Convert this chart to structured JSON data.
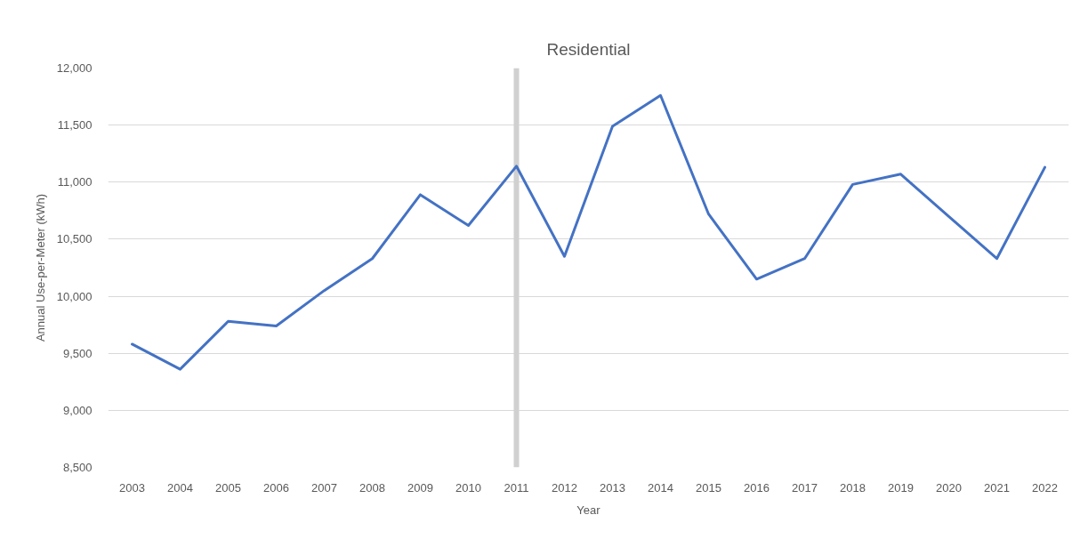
{
  "chart_data": {
    "type": "line",
    "title": "Residential",
    "xlabel": "Year",
    "ylabel": "Annual Use-per-Meter (kWh)",
    "categories": [
      "2003",
      "2004",
      "2005",
      "2006",
      "2007",
      "2008",
      "2009",
      "2010",
      "2011",
      "2012",
      "2013",
      "2014",
      "2015",
      "2016",
      "2017",
      "2018",
      "2019",
      "2020",
      "2021",
      "2022"
    ],
    "series": [
      {
        "color": "#4472c4",
        "values": [
          9580,
          9360,
          9780,
          9740,
          10050,
          10330,
          10890,
          10620,
          11140,
          10350,
          11490,
          11760,
          10720,
          10150,
          10330,
          10980,
          11070,
          10700,
          10330,
          11130
        ]
      }
    ],
    "ylim": [
      8500,
      12000
    ],
    "yticks": [
      {
        "value": 8500,
        "label": "8,500"
      },
      {
        "value": 9000,
        "label": "9,000"
      },
      {
        "value": 9500,
        "label": "9,500"
      },
      {
        "value": 10000,
        "label": "10,000"
      },
      {
        "value": 10500,
        "label": "10,500"
      },
      {
        "value": 11000,
        "label": "11,000"
      },
      {
        "value": 11500,
        "label": "11,500"
      },
      {
        "value": 12000,
        "label": "12,000"
      }
    ],
    "ref_lines": [
      {
        "axis": "x",
        "value": "2011",
        "color": "#d0d0d0"
      }
    ],
    "grid": "y"
  }
}
